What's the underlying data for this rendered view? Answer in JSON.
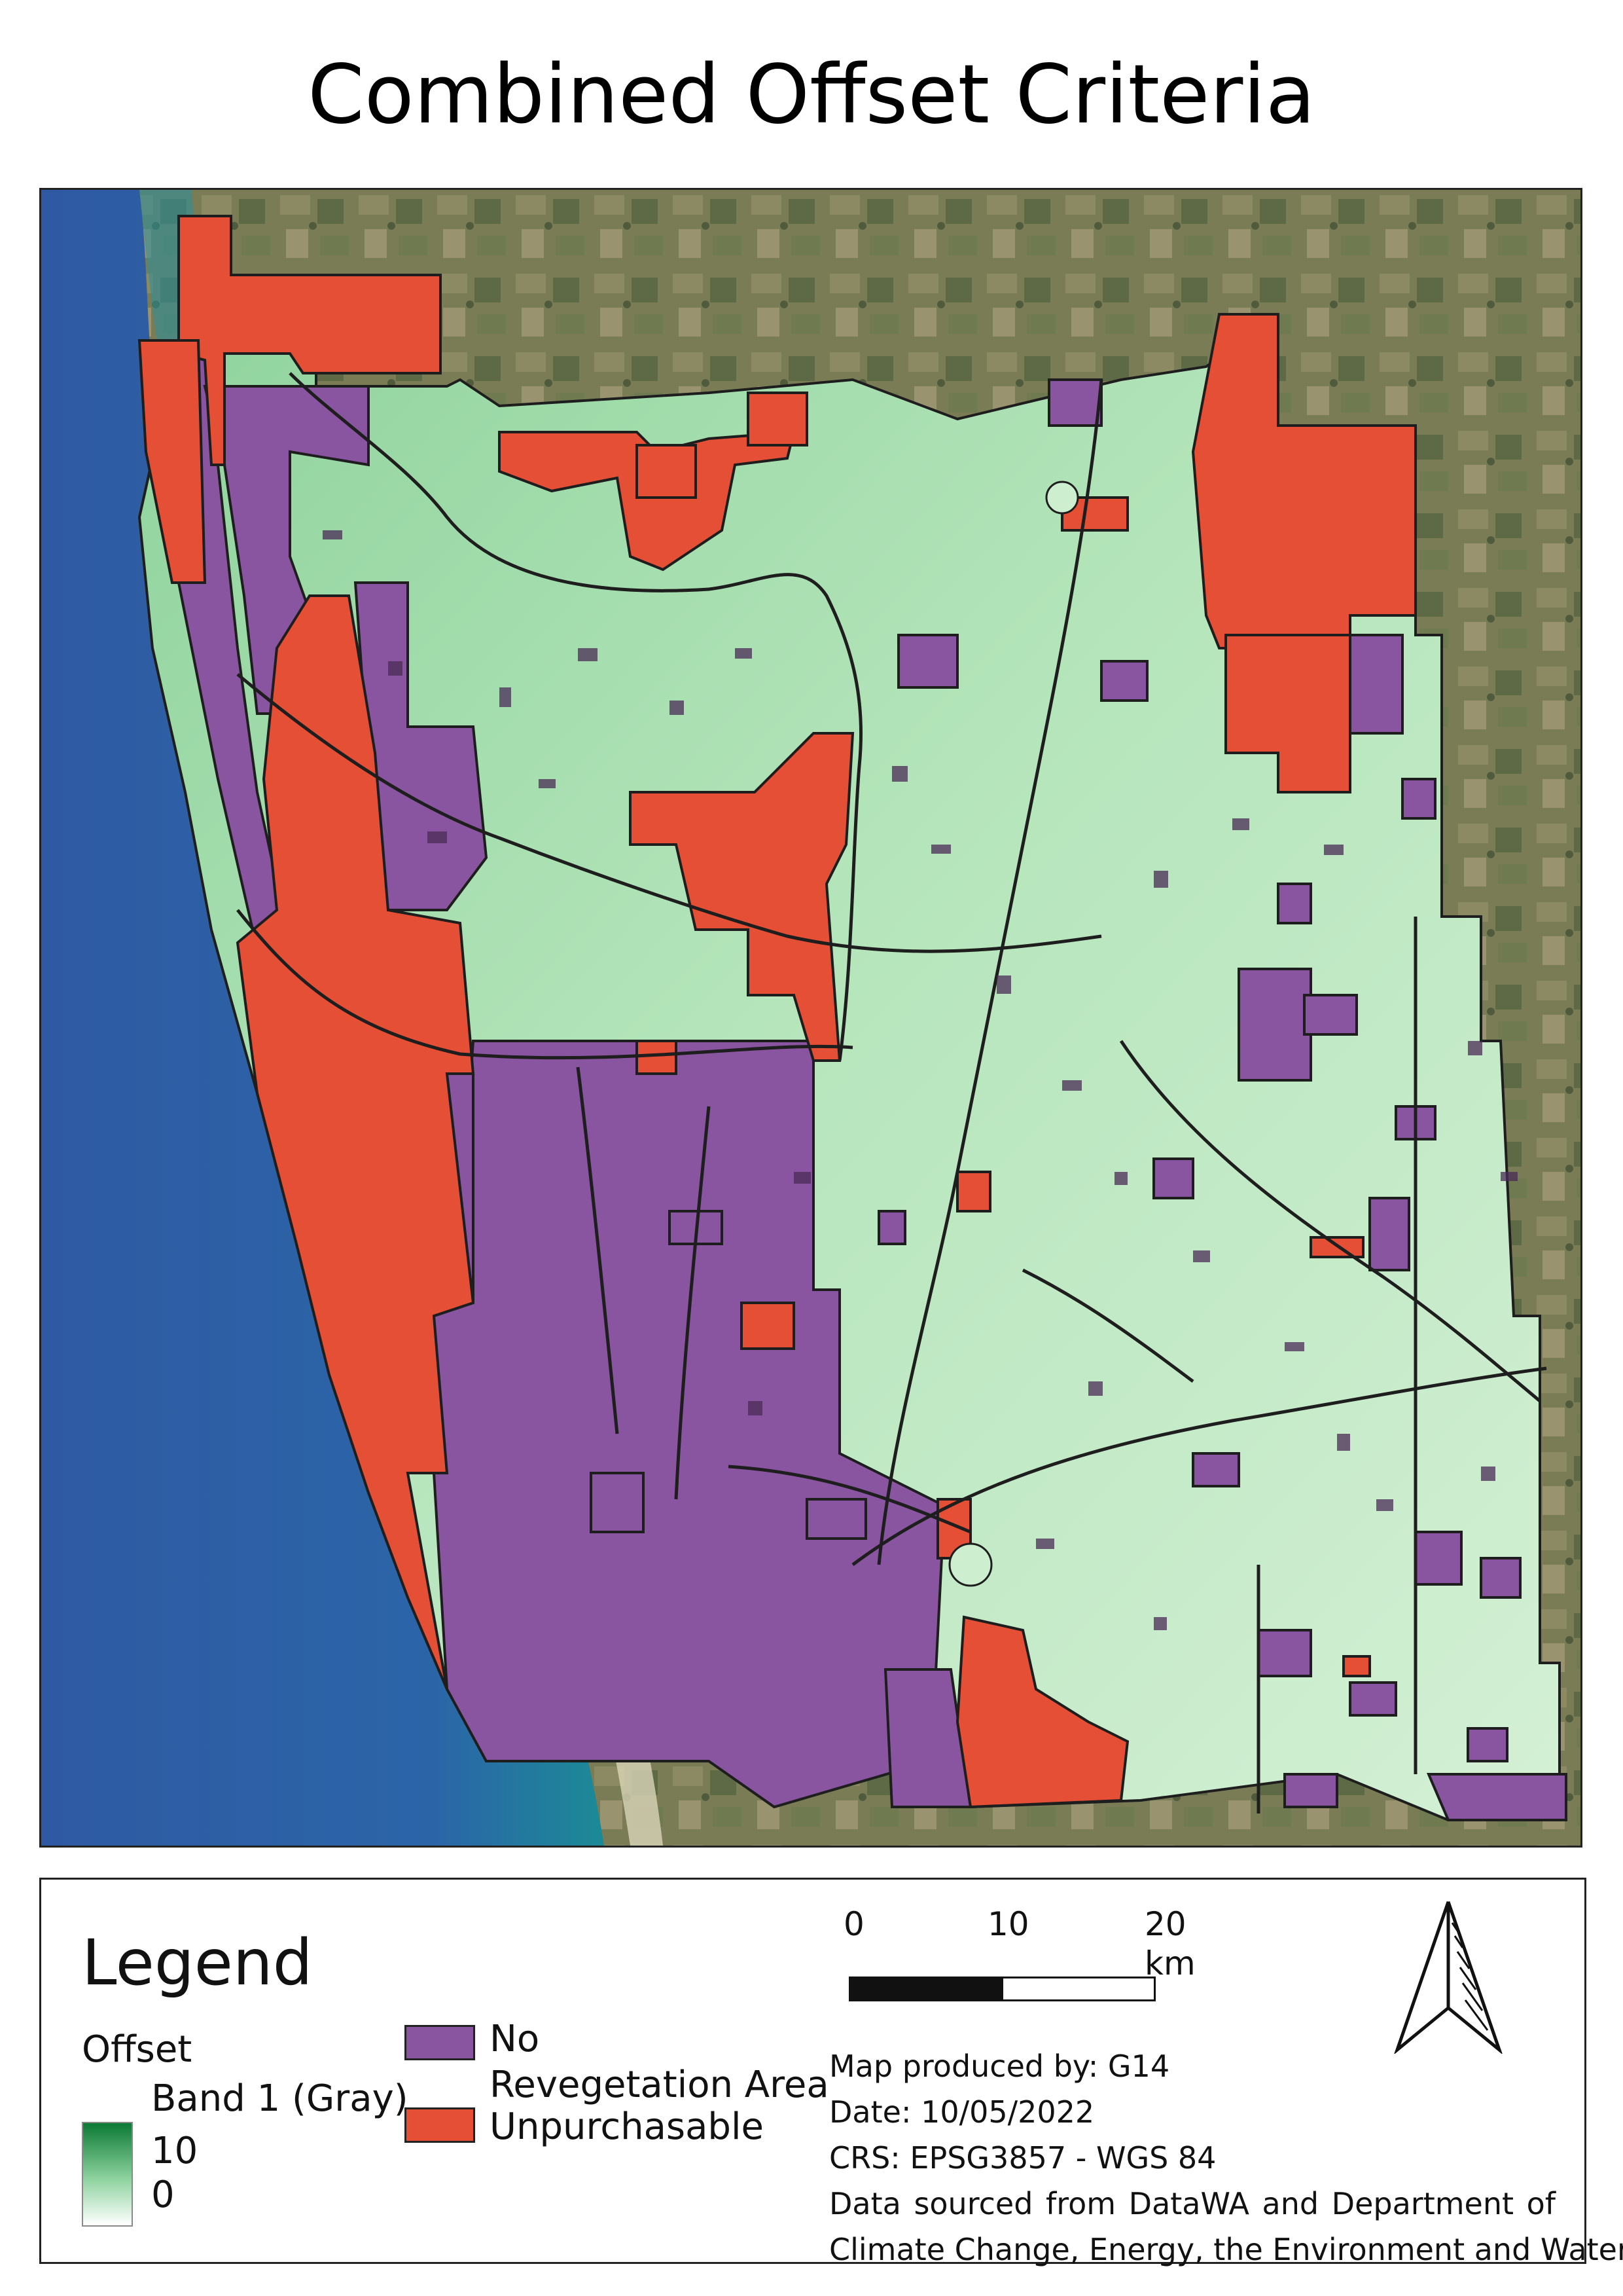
{
  "title": "Combined Offset Criteria",
  "map": {
    "colors": {
      "ocean": "#2a5fa8",
      "ocean_coast": "#1d7c93",
      "land_background": "#7b7f57",
      "offset_high": "#4dbe73",
      "offset_low": "#cdeecf",
      "no_revegetation": "#8a55a0",
      "unpurchasable": "#e44f35",
      "boundary": "#1e1e1e"
    }
  },
  "legend": {
    "title": "Legend",
    "offset_layer": "Offset",
    "band_label": "Band 1 (Gray)",
    "ramp_max": "10",
    "ramp_min": "0",
    "categories": [
      {
        "label_line1": "No",
        "label_line2": "Revegetation Area",
        "color": "#8a55a0"
      },
      {
        "label": "Unpurchasable",
        "color": "#e44f35"
      }
    ]
  },
  "scale_bar": {
    "labels": [
      "0",
      "10",
      "20 km"
    ]
  },
  "credits": {
    "produced_by": "Map produced by: G14",
    "date": "Date: 10/05/2022",
    "crs": "CRS: EPSG3857 - WGS 84",
    "source_line1": "Data sourced from DataWA and Department of",
    "source_line2": "Climate Change, Energy, the Environment and Water"
  }
}
